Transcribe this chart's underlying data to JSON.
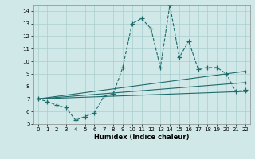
{
  "xlabel": "Humidex (Indice chaleur)",
  "ylabel": "",
  "bg_color": "#d0e8e8",
  "grid_color": "#aacfcf",
  "line_color": "#1e6b6b",
  "xlim": [
    -0.5,
    22.5
  ],
  "ylim": [
    5,
    14.5
  ],
  "xticks": [
    0,
    1,
    2,
    3,
    4,
    5,
    6,
    7,
    8,
    9,
    10,
    11,
    12,
    13,
    14,
    15,
    16,
    17,
    18,
    19,
    20,
    21,
    22
  ],
  "yticks": [
    5,
    6,
    7,
    8,
    9,
    10,
    11,
    12,
    13,
    14
  ],
  "series1_x": [
    0,
    1,
    2,
    3,
    4,
    5,
    6,
    7,
    8,
    9,
    10,
    11,
    12,
    13,
    14,
    15,
    16,
    17,
    18,
    19,
    20,
    21,
    22
  ],
  "series1_y": [
    7.0,
    6.8,
    6.5,
    6.3,
    5.3,
    5.6,
    5.9,
    7.2,
    7.4,
    9.5,
    13.0,
    13.4,
    12.6,
    9.5,
    14.5,
    10.3,
    11.6,
    9.4,
    9.5,
    9.5,
    9.0,
    7.6,
    7.7
  ],
  "line1_x": [
    0,
    22
  ],
  "line1_y": [
    7.0,
    7.6
  ],
  "line2_x": [
    0,
    22
  ],
  "line2_y": [
    7.0,
    8.3
  ],
  "line3_x": [
    0,
    22
  ],
  "line3_y": [
    7.0,
    9.2
  ]
}
